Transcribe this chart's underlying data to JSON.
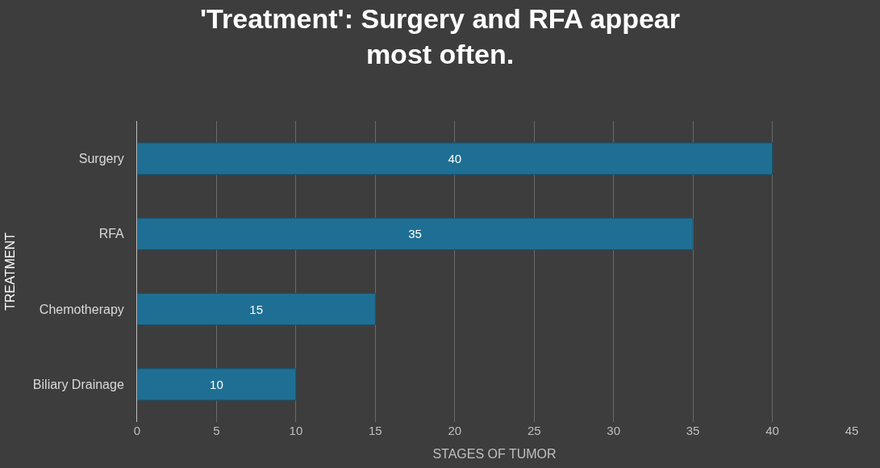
{
  "chart_data": {
    "type": "bar",
    "orientation": "horizontal",
    "title": "'Treatment': Surgery and RFA appear most often.",
    "xlabel": "STAGES OF TUMOR",
    "ylabel": "TREATMENT",
    "categories": [
      "Surgery",
      "RFA",
      "Chemotherapy",
      "Biliary Drainage"
    ],
    "values": [
      40,
      35,
      15,
      10
    ],
    "color": "#1f6f94",
    "xlim": [
      0,
      45
    ],
    "xticks": [
      0,
      5,
      10,
      15,
      20,
      25,
      30,
      35,
      40,
      45
    ],
    "grid": "x",
    "data_labels": true
  }
}
